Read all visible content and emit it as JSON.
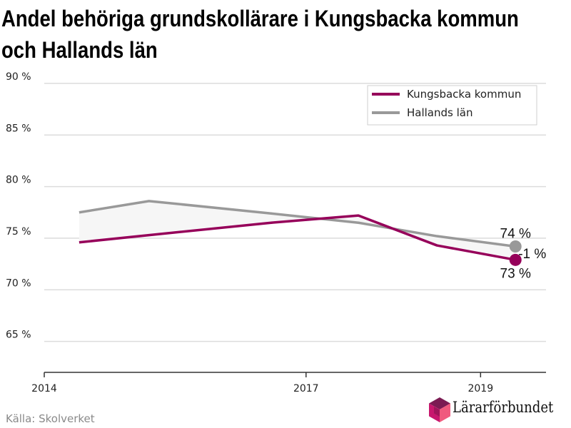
{
  "title_line1": "Andel behöriga grundskollärare i Kungsbacka kommun",
  "title_line2": "och Hallands län",
  "source": "Källa: Skolverket",
  "brand": {
    "name": "Lärarförbundet",
    "logo_colors": [
      "#7b1b53",
      "#c8176e",
      "#f05a7e",
      "#a0155b"
    ]
  },
  "chart_data": {
    "type": "line",
    "x": [
      2014.4,
      2015.2,
      2016.6,
      2017.6,
      2018.5,
      2019.4
    ],
    "x_ticks": [
      2014,
      2017,
      2019
    ],
    "x_tick_labels": [
      "2014",
      "2017",
      "2019"
    ],
    "xlim": [
      2014,
      2019.75
    ],
    "ylim": [
      62,
      92
    ],
    "y_ticks": [
      65,
      70,
      75,
      80,
      85,
      90
    ],
    "y_tick_labels": [
      "65 %",
      "70 %",
      "75 %",
      "80 %",
      "85 %",
      "90 %"
    ],
    "grid": true,
    "legend_position": "top-right",
    "series": [
      {
        "name": "Kungsbacka kommun",
        "color": "#96005a",
        "values": [
          74.6,
          75.3,
          76.5,
          77.2,
          74.3,
          72.9
        ]
      },
      {
        "name": "Hallands län",
        "color": "#999999",
        "values": [
          77.5,
          78.6,
          77.4,
          76.5,
          75.2,
          74.2
        ]
      }
    ],
    "end_labels": [
      {
        "series": "Hallands län",
        "text": "74 %"
      },
      {
        "series": "Kungsbacka kommun",
        "text": "73 %"
      },
      {
        "text": "-1 %"
      }
    ]
  }
}
